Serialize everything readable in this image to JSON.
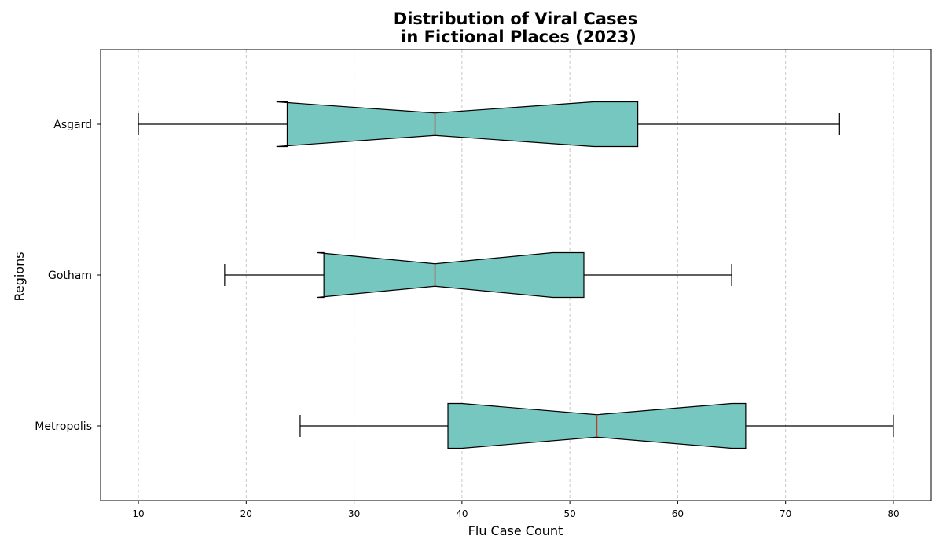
{
  "chart_data": {
    "type": "boxplot",
    "orientation": "horizontal",
    "notched": true,
    "title_lines": [
      "Distribution of Viral Cases",
      "in Fictional Places (2023)"
    ],
    "xlabel": "Flu Case Count",
    "ylabel": "Regions",
    "xlim": [
      6.5,
      83.5
    ],
    "xticks": [
      10,
      20,
      30,
      40,
      50,
      60,
      70,
      80
    ],
    "grid": "x-dashed",
    "colors": {
      "box_fill": "#76c7c0",
      "median": "#c0392b",
      "edge": "#000000",
      "grid": "#c8c8c8"
    },
    "categories": [
      "Asgard",
      "Gotham",
      "Metropolis"
    ],
    "boxes": [
      {
        "name": "Asgard",
        "whisker_low": 10,
        "q1": 23.8,
        "notch_low": 22.8,
        "median": 37.5,
        "notch_high": 52.2,
        "q3": 56.3,
        "whisker_high": 75
      },
      {
        "name": "Gotham",
        "whisker_low": 18,
        "q1": 27.2,
        "notch_low": 26.6,
        "median": 37.5,
        "notch_high": 48.4,
        "q3": 51.3,
        "whisker_high": 65
      },
      {
        "name": "Metropolis",
        "whisker_low": 25,
        "q1": 38.7,
        "notch_low": 40.0,
        "median": 52.5,
        "notch_high": 65.0,
        "q3": 66.3,
        "whisker_high": 80
      }
    ]
  }
}
